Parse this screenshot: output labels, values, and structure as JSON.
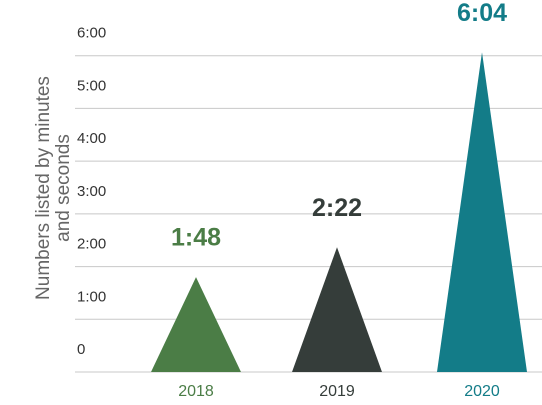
{
  "chart_data": {
    "type": "triangle-bar",
    "y_label": [
      "Numbers listed by minutes",
      "and seconds"
    ],
    "categories": [
      "2018",
      "2019",
      "2020"
    ],
    "values": [
      1.8,
      2.3667,
      6.0667
    ],
    "value_labels": [
      "1:48",
      "2:22",
      "6:04"
    ],
    "colors": [
      "#4b7d46",
      "#353d3a",
      "#137c88"
    ],
    "ylim": [
      0,
      7
    ],
    "yticks": [
      0,
      {
        "value": 1,
        "label": "1:00"
      },
      {
        "value": 2,
        "label": "2:00"
      },
      {
        "value": 3,
        "label": "3:00"
      },
      {
        "value": 4,
        "label": "4:00"
      },
      {
        "value": 5,
        "label": "5:00"
      },
      {
        "value": 6,
        "label": "6:00"
      }
    ],
    "grid": true
  }
}
